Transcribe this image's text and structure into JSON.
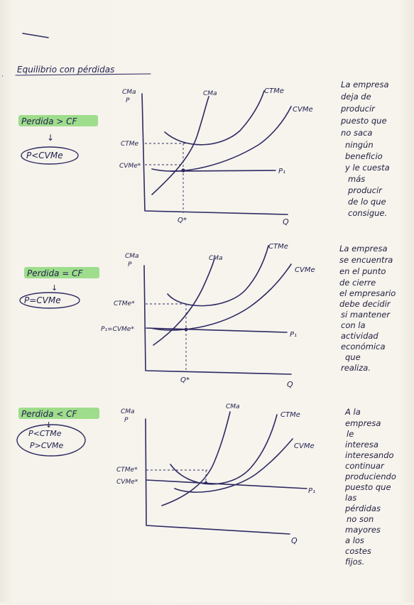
{
  "title": "Equilibrio con pérdidas",
  "sections": [
    {
      "condition": "Perdida > CF",
      "arrow": "↓",
      "result": "P<CVMe",
      "y_axis": [
        "CMa",
        "P"
      ],
      "curves": {
        "cma": "CMa",
        "ctme": "CTMe",
        "cvme": "CVMe",
        "price": "P₁"
      },
      "y_ticks": [
        "CTMe",
        "CVMe*"
      ],
      "x_tick": "Q*",
      "x_axis": "Q",
      "note": [
        "La empresa",
        "deja de",
        "producir",
        "puesto que",
        "no saca",
        "ningún",
        "beneficio",
        "y le cuesta",
        "más",
        "producir",
        "de lo que",
        "consigue."
      ]
    },
    {
      "condition": "Perdida = CF",
      "arrow": "↓",
      "result": "P=CVMe",
      "y_axis": [
        "CMa",
        "P"
      ],
      "curves": {
        "cma": "CMa",
        "ctme": "CTMe",
        "cvme": "CVMe",
        "price": "P₁"
      },
      "y_ticks": [
        "CTMe*",
        "P₁=CVMe*"
      ],
      "x_tick": "Q*",
      "x_axis": "Q",
      "note": [
        "La empresa",
        "se encuentra",
        "en el punto",
        "de cierre",
        "el empresario",
        "debe decidir",
        "si mantener",
        "con la",
        "actividad",
        "económica",
        "que",
        "realiza."
      ]
    },
    {
      "condition": "Perdida < CF",
      "arrow": "↓",
      "result_lines": [
        "P<CTMe",
        "P>CVMe"
      ],
      "y_axis": [
        "CMa",
        "P"
      ],
      "curves": {
        "cma": "CMa",
        "ctme": "CTMe",
        "cvme": "CVMe",
        "price": "P₁"
      },
      "y_ticks": [
        "CTMe*",
        "CVMe*"
      ],
      "x_axis": "Q",
      "note": [
        "A la",
        "empresa",
        "le",
        "interesa",
        "interesando",
        "continuar",
        "produciendo",
        "puesto que",
        "las",
        "pérdidas",
        "no son",
        "mayores",
        "a los",
        "costes",
        "fijos."
      ]
    }
  ],
  "colors": {
    "ink": "#2e2a63",
    "highlight": "#8ed87a",
    "paper": "#f4f1ea"
  }
}
